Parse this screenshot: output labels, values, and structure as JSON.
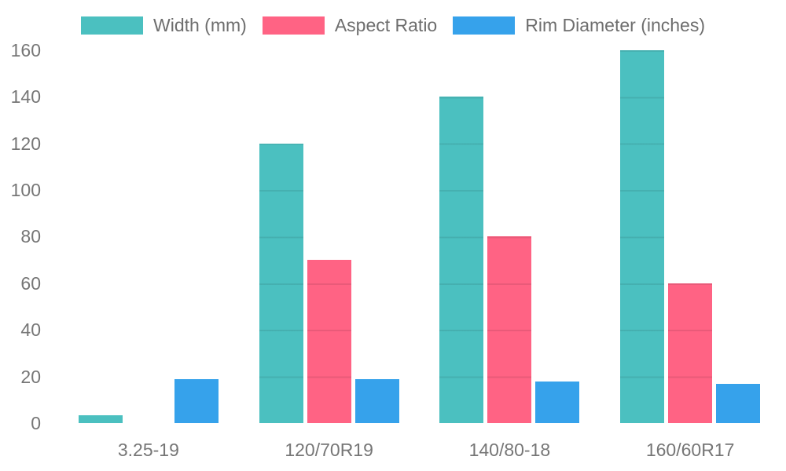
{
  "chart_data": {
    "type": "bar",
    "title": "",
    "categories": [
      "3.25-19",
      "120/70R19",
      "140/80-18",
      "160/60R17"
    ],
    "series": [
      {
        "name": "Width (mm)",
        "color": "#4BC0C0",
        "values": [
          3.25,
          120,
          140,
          160
        ]
      },
      {
        "name": "Aspect Ratio",
        "color": "#FF6384",
        "values": [
          0,
          70,
          80,
          60
        ]
      },
      {
        "name": "Rim Diameter (inches)",
        "color": "#36A2EB",
        "values": [
          19,
          19,
          18,
          17
        ]
      }
    ],
    "xlabel": "",
    "ylabel": "",
    "ylim": [
      0,
      160
    ],
    "yticks": [
      0,
      20,
      40,
      60,
      80,
      100,
      120,
      140,
      160
    ],
    "legend_position": "top",
    "grid": "horizontal-lines-overlaid-on-bars-only",
    "background": "transparent",
    "tick_color": "#767676",
    "legend_text_color": "#6e6e6e"
  }
}
